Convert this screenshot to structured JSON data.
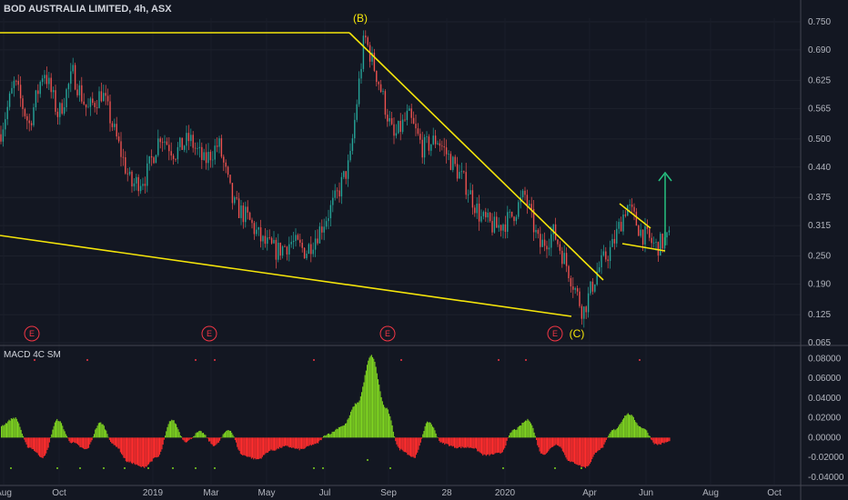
{
  "header": {
    "title": "BOD AUSTRALIA LIMITED, 4h, ASX"
  },
  "indicator": {
    "label": "MACD 4C SM"
  },
  "annotations": {
    "wave_b": "(B)",
    "wave_c": "(C)",
    "earnings": "E"
  },
  "colors": {
    "background": "#131722",
    "trendline": "#f5e50a",
    "up_candle": "#26a69a",
    "down_candle": "#ef5350",
    "arrow": "#26c281",
    "hist_pos": "#7ed321",
    "hist_neg": "#ff2d2d"
  },
  "chart_data": [
    {
      "type": "candlestick",
      "title": "BOD AUSTRALIA LIMITED, 4h, ASX",
      "x_ticks": [
        "Aug",
        "Oct",
        "2019",
        "Mar",
        "May",
        "Jul",
        "Sep",
        "28",
        "2020",
        "Apr",
        "Jun",
        "Aug",
        "Oct"
      ],
      "y_ticks": [
        0.75,
        0.69,
        0.625,
        0.565,
        0.5,
        0.44,
        0.375,
        0.315,
        0.25,
        0.19,
        0.125,
        0.065
      ],
      "ylim": [
        0.065,
        0.76
      ],
      "price_path": [
        [
          "Aug",
          0.51
        ],
        [
          "Aug+",
          0.62
        ],
        [
          "Sep",
          0.53
        ],
        [
          "Oct-",
          0.65
        ],
        [
          "Oct",
          0.55
        ],
        [
          "Oct+",
          0.64
        ],
        [
          "Nov",
          0.56
        ],
        [
          "Nov+",
          0.6
        ],
        [
          "Dec",
          0.5
        ],
        [
          "Dec+",
          0.4
        ],
        [
          "2019-",
          0.42
        ],
        [
          "2019",
          0.51
        ],
        [
          "2019+",
          0.47
        ],
        [
          "Feb",
          0.5
        ],
        [
          "Mar-",
          0.45
        ],
        [
          "Mar",
          0.49
        ],
        [
          "Mar+",
          0.36
        ],
        [
          "Apr",
          0.33
        ],
        [
          "Apr+",
          0.28
        ],
        [
          "May",
          0.26
        ],
        [
          "May+",
          0.28
        ],
        [
          "Jun",
          0.26
        ],
        [
          "Jun+",
          0.31
        ],
        [
          "Jul",
          0.37
        ],
        [
          "Jul+",
          0.45
        ],
        [
          "B",
          0.72
        ],
        [
          "Aug19",
          0.62
        ],
        [
          "Aug19+",
          0.5
        ],
        [
          "Sep",
          0.55
        ],
        [
          "Sep+",
          0.48
        ],
        [
          "Sep++",
          0.5
        ],
        [
          "Oct19",
          0.45
        ],
        [
          "Oct19+",
          0.4
        ],
        [
          "28",
          0.33
        ],
        [
          "28+",
          0.31
        ],
        [
          "Dec19",
          0.33
        ],
        [
          "2020",
          0.38
        ],
        [
          "2020+",
          0.27
        ],
        [
          "Feb20",
          0.3
        ],
        [
          "Mar20",
          0.22
        ],
        [
          "C",
          0.13
        ],
        [
          "Apr",
          0.22
        ],
        [
          "Apr+",
          0.27
        ],
        [
          "May20",
          0.36
        ],
        [
          "May20+",
          0.3
        ],
        [
          "Jun",
          0.27
        ],
        [
          "Jun+",
          0.29
        ]
      ],
      "annotations": [
        {
          "text": "(B)",
          "price": 0.72
        },
        {
          "text": "(C)",
          "price": 0.13
        },
        {
          "text": "E"
        },
        {
          "text": "E"
        },
        {
          "text": "E"
        },
        {
          "text": "E"
        }
      ],
      "trendlines": [
        {
          "name": "resistance",
          "from": [
            "Aug",
            0.72
          ],
          "to": [
            "Jul",
            0.72
          ]
        },
        {
          "name": "downtrend",
          "from": [
            "Jul",
            0.72
          ],
          "to": [
            "Apr",
            0.2
          ]
        },
        {
          "name": "support",
          "from": [
            "Aug",
            0.3
          ],
          "to": [
            "C",
            0.125
          ]
        },
        {
          "name": "flag-upper",
          "from": [
            "May20",
            0.36
          ],
          "to": [
            "Jun",
            0.31
          ]
        },
        {
          "name": "flag-lower",
          "from": [
            "May20",
            0.28
          ],
          "to": [
            "Jun",
            0.26
          ]
        }
      ],
      "target_arrow": {
        "from": 0.3,
        "to": 0.43
      }
    },
    {
      "type": "histogram",
      "title": "MACD 4C SM",
      "y_ticks": [
        0.08,
        0.06,
        0.04,
        0.02,
        -0.0,
        -0.02,
        -0.04
      ],
      "ylim": [
        -0.042,
        0.085
      ],
      "values_path": [
        [
          "Aug",
          0.012
        ],
        [
          "Aug+",
          0.02
        ],
        [
          "Sep",
          -0.01
        ],
        [
          "Sep+",
          -0.02
        ],
        [
          "Oct-",
          0.018
        ],
        [
          "Oct",
          -0.005
        ],
        [
          "Oct+",
          -0.012
        ],
        [
          "Nov",
          0.015
        ],
        [
          "Nov+",
          -0.008
        ],
        [
          "Dec",
          -0.025
        ],
        [
          "Dec+",
          -0.03
        ],
        [
          "2019-",
          -0.02
        ],
        [
          "2019",
          0.018
        ],
        [
          "2019+",
          -0.004
        ],
        [
          "Feb",
          0.006
        ],
        [
          "Mar-",
          -0.008
        ],
        [
          "Mar",
          0.008
        ],
        [
          "Mar+",
          -0.018
        ],
        [
          "Apr",
          -0.022
        ],
        [
          "Apr+",
          -0.013
        ],
        [
          "May",
          -0.009
        ],
        [
          "May+",
          -0.012
        ],
        [
          "Jun",
          -0.007
        ],
        [
          "Jun+",
          0.004
        ],
        [
          "Jul",
          0.012
        ],
        [
          "Jul+",
          0.035
        ],
        [
          "B",
          0.083
        ],
        [
          "Aug19",
          0.03
        ],
        [
          "Aug19+",
          -0.012
        ],
        [
          "Sep",
          -0.02
        ],
        [
          "Sep+",
          0.016
        ],
        [
          "Sep++",
          -0.006
        ],
        [
          "Oct19",
          -0.01
        ],
        [
          "Oct19+",
          -0.01
        ],
        [
          "28",
          -0.018
        ],
        [
          "28+",
          -0.016
        ],
        [
          "Dec19",
          0.008
        ],
        [
          "2020",
          0.018
        ],
        [
          "2020+",
          -0.017
        ],
        [
          "Feb20",
          -0.007
        ],
        [
          "Mar20",
          -0.025
        ],
        [
          "C",
          -0.03
        ],
        [
          "Apr",
          -0.012
        ],
        [
          "Apr+",
          0.008
        ],
        [
          "May20",
          0.024
        ],
        [
          "May20+",
          0.01
        ],
        [
          "Jun",
          -0.007
        ],
        [
          "Jun+",
          -0.004
        ]
      ]
    }
  ]
}
